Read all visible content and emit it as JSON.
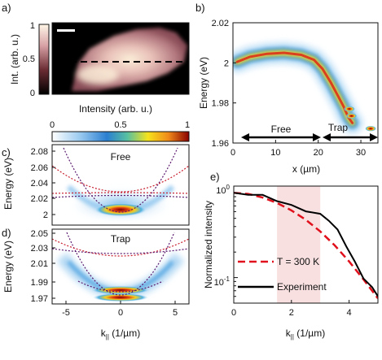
{
  "panels": {
    "a": {
      "label": "a)",
      "ylabel": "Int. (arb. u.)",
      "xlabel": "Intensity (arb. u.)",
      "colorbar_ticks": [
        "1",
        "0.5",
        "0"
      ]
    },
    "b": {
      "label": "b)",
      "ylabel": "Energy (eV)",
      "xlabel": "x (µm)",
      "yticks": [
        "2.02",
        "2",
        "1.98",
        "1.96"
      ],
      "xticks": [
        "0",
        "10",
        "20",
        "30"
      ],
      "annotations": [
        "Free",
        "Trap"
      ]
    },
    "colorbar": {
      "ticks": [
        "0",
        "0.5",
        "1"
      ]
    },
    "c": {
      "label": "c)",
      "ylabel": "Energy (eV)",
      "title": "Free",
      "yticks": [
        "2.08",
        "2.06",
        "2.04",
        "2.02",
        "2"
      ]
    },
    "d": {
      "label": "d)",
      "ylabel": "Energy (eV)",
      "title": "Trap",
      "yticks": [
        "2.05",
        "2.03",
        "2.01",
        "1.99",
        "1.97"
      ],
      "xticks": [
        "-5",
        "0",
        "5"
      ],
      "xlabel_main": "k",
      "xlabel_sub": "||",
      "xlabel_unit": " (1/µm)"
    },
    "e": {
      "label": "e)",
      "ylabel": "Normalized intensity",
      "xlabel_main": "k",
      "xlabel_sub": "||",
      "xlabel_unit": " (1/µm)",
      "xticks": [
        "0",
        "2",
        "4"
      ],
      "yticks": [
        "10",
        "10"
      ],
      "ytick_exps": [
        "0",
        "-1"
      ],
      "legend": [
        "T = 300 K",
        "Experiment"
      ]
    }
  },
  "chart_data": [
    {
      "panel": "b",
      "type": "heatmap",
      "xlim": [
        0,
        34
      ],
      "ylim": [
        1.96,
        2.02
      ],
      "ridge": {
        "x": [
          1,
          4,
          8,
          12,
          16,
          19,
          21,
          23,
          24.5,
          26,
          27,
          28
        ],
        "y": [
          2.0005,
          2.003,
          2.0045,
          2.005,
          2.004,
          2.0015,
          1.997,
          1.99,
          1.984,
          1.978,
          1.973,
          1.97
        ]
      },
      "trap_spots": [
        {
          "x": 27.3,
          "y": 1.977
        },
        {
          "x": 27.8,
          "y": 1.9735
        },
        {
          "x": 32.3,
          "y": 1.9672
        }
      ]
    },
    {
      "panel": "e",
      "type": "line",
      "xlim": [
        0,
        5
      ],
      "ylim": [
        0.05,
        1.2
      ],
      "yscale": "log",
      "shaded_region": [
        1.5,
        3.0
      ],
      "series": [
        {
          "name": "T = 300 K",
          "x": [
            0,
            0.5,
            1.0,
            1.5,
            2.0,
            2.5,
            3.0,
            3.5,
            4.0,
            4.5,
            5.0
          ],
          "y": [
            1.0,
            0.97,
            0.88,
            0.76,
            0.62,
            0.48,
            0.35,
            0.24,
            0.155,
            0.095,
            0.057
          ]
        },
        {
          "name": "Experiment",
          "x": [
            0,
            0.5,
            1.0,
            1.5,
            2.0,
            2.5,
            3.0,
            3.3,
            3.6,
            3.9,
            4.2,
            4.5,
            4.8,
            5.0
          ],
          "y": [
            1.0,
            0.97,
            0.92,
            0.82,
            0.7,
            0.62,
            0.55,
            0.48,
            0.36,
            0.24,
            0.15,
            0.1,
            0.075,
            0.06
          ]
        }
      ]
    }
  ]
}
